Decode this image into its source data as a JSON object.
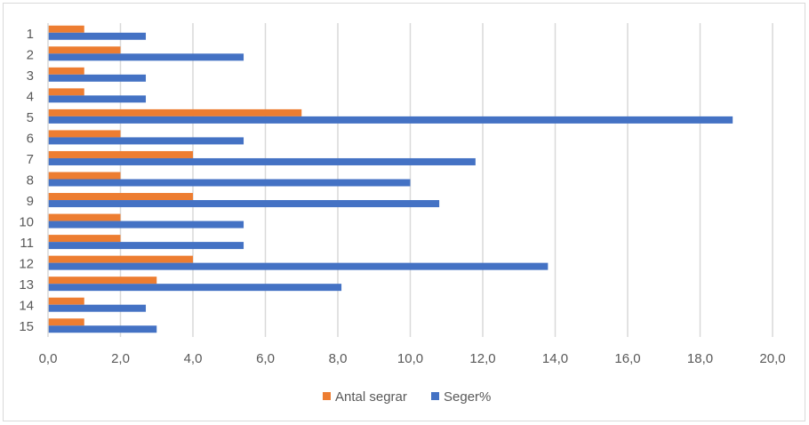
{
  "chart_data": {
    "type": "bar",
    "orientation": "horizontal",
    "categories": [
      "1",
      "2",
      "3",
      "4",
      "5",
      "6",
      "7",
      "8",
      "9",
      "10",
      "11",
      "12",
      "13",
      "14",
      "15"
    ],
    "series": [
      {
        "name": "Antal segrar",
        "color": "#ed7d31",
        "values": [
          1,
          2,
          1,
          1,
          7,
          2,
          4,
          2,
          4,
          2,
          2,
          4,
          3,
          1,
          1
        ]
      },
      {
        "name": "Seger%",
        "color": "#4472c4",
        "values": [
          2.7,
          5.4,
          2.7,
          2.7,
          18.9,
          5.4,
          11.8,
          10.0,
          10.8,
          5.4,
          5.4,
          13.8,
          8.1,
          2.7,
          3.0
        ]
      }
    ],
    "xlim": [
      0,
      20
    ],
    "xticks": [
      "0,0",
      "2,0",
      "4,0",
      "6,0",
      "8,0",
      "10,0",
      "12,0",
      "14,0",
      "16,0",
      "18,0",
      "20,0"
    ],
    "grid": true,
    "legend": "bottom",
    "title": "",
    "xlabel": "",
    "ylabel": ""
  }
}
